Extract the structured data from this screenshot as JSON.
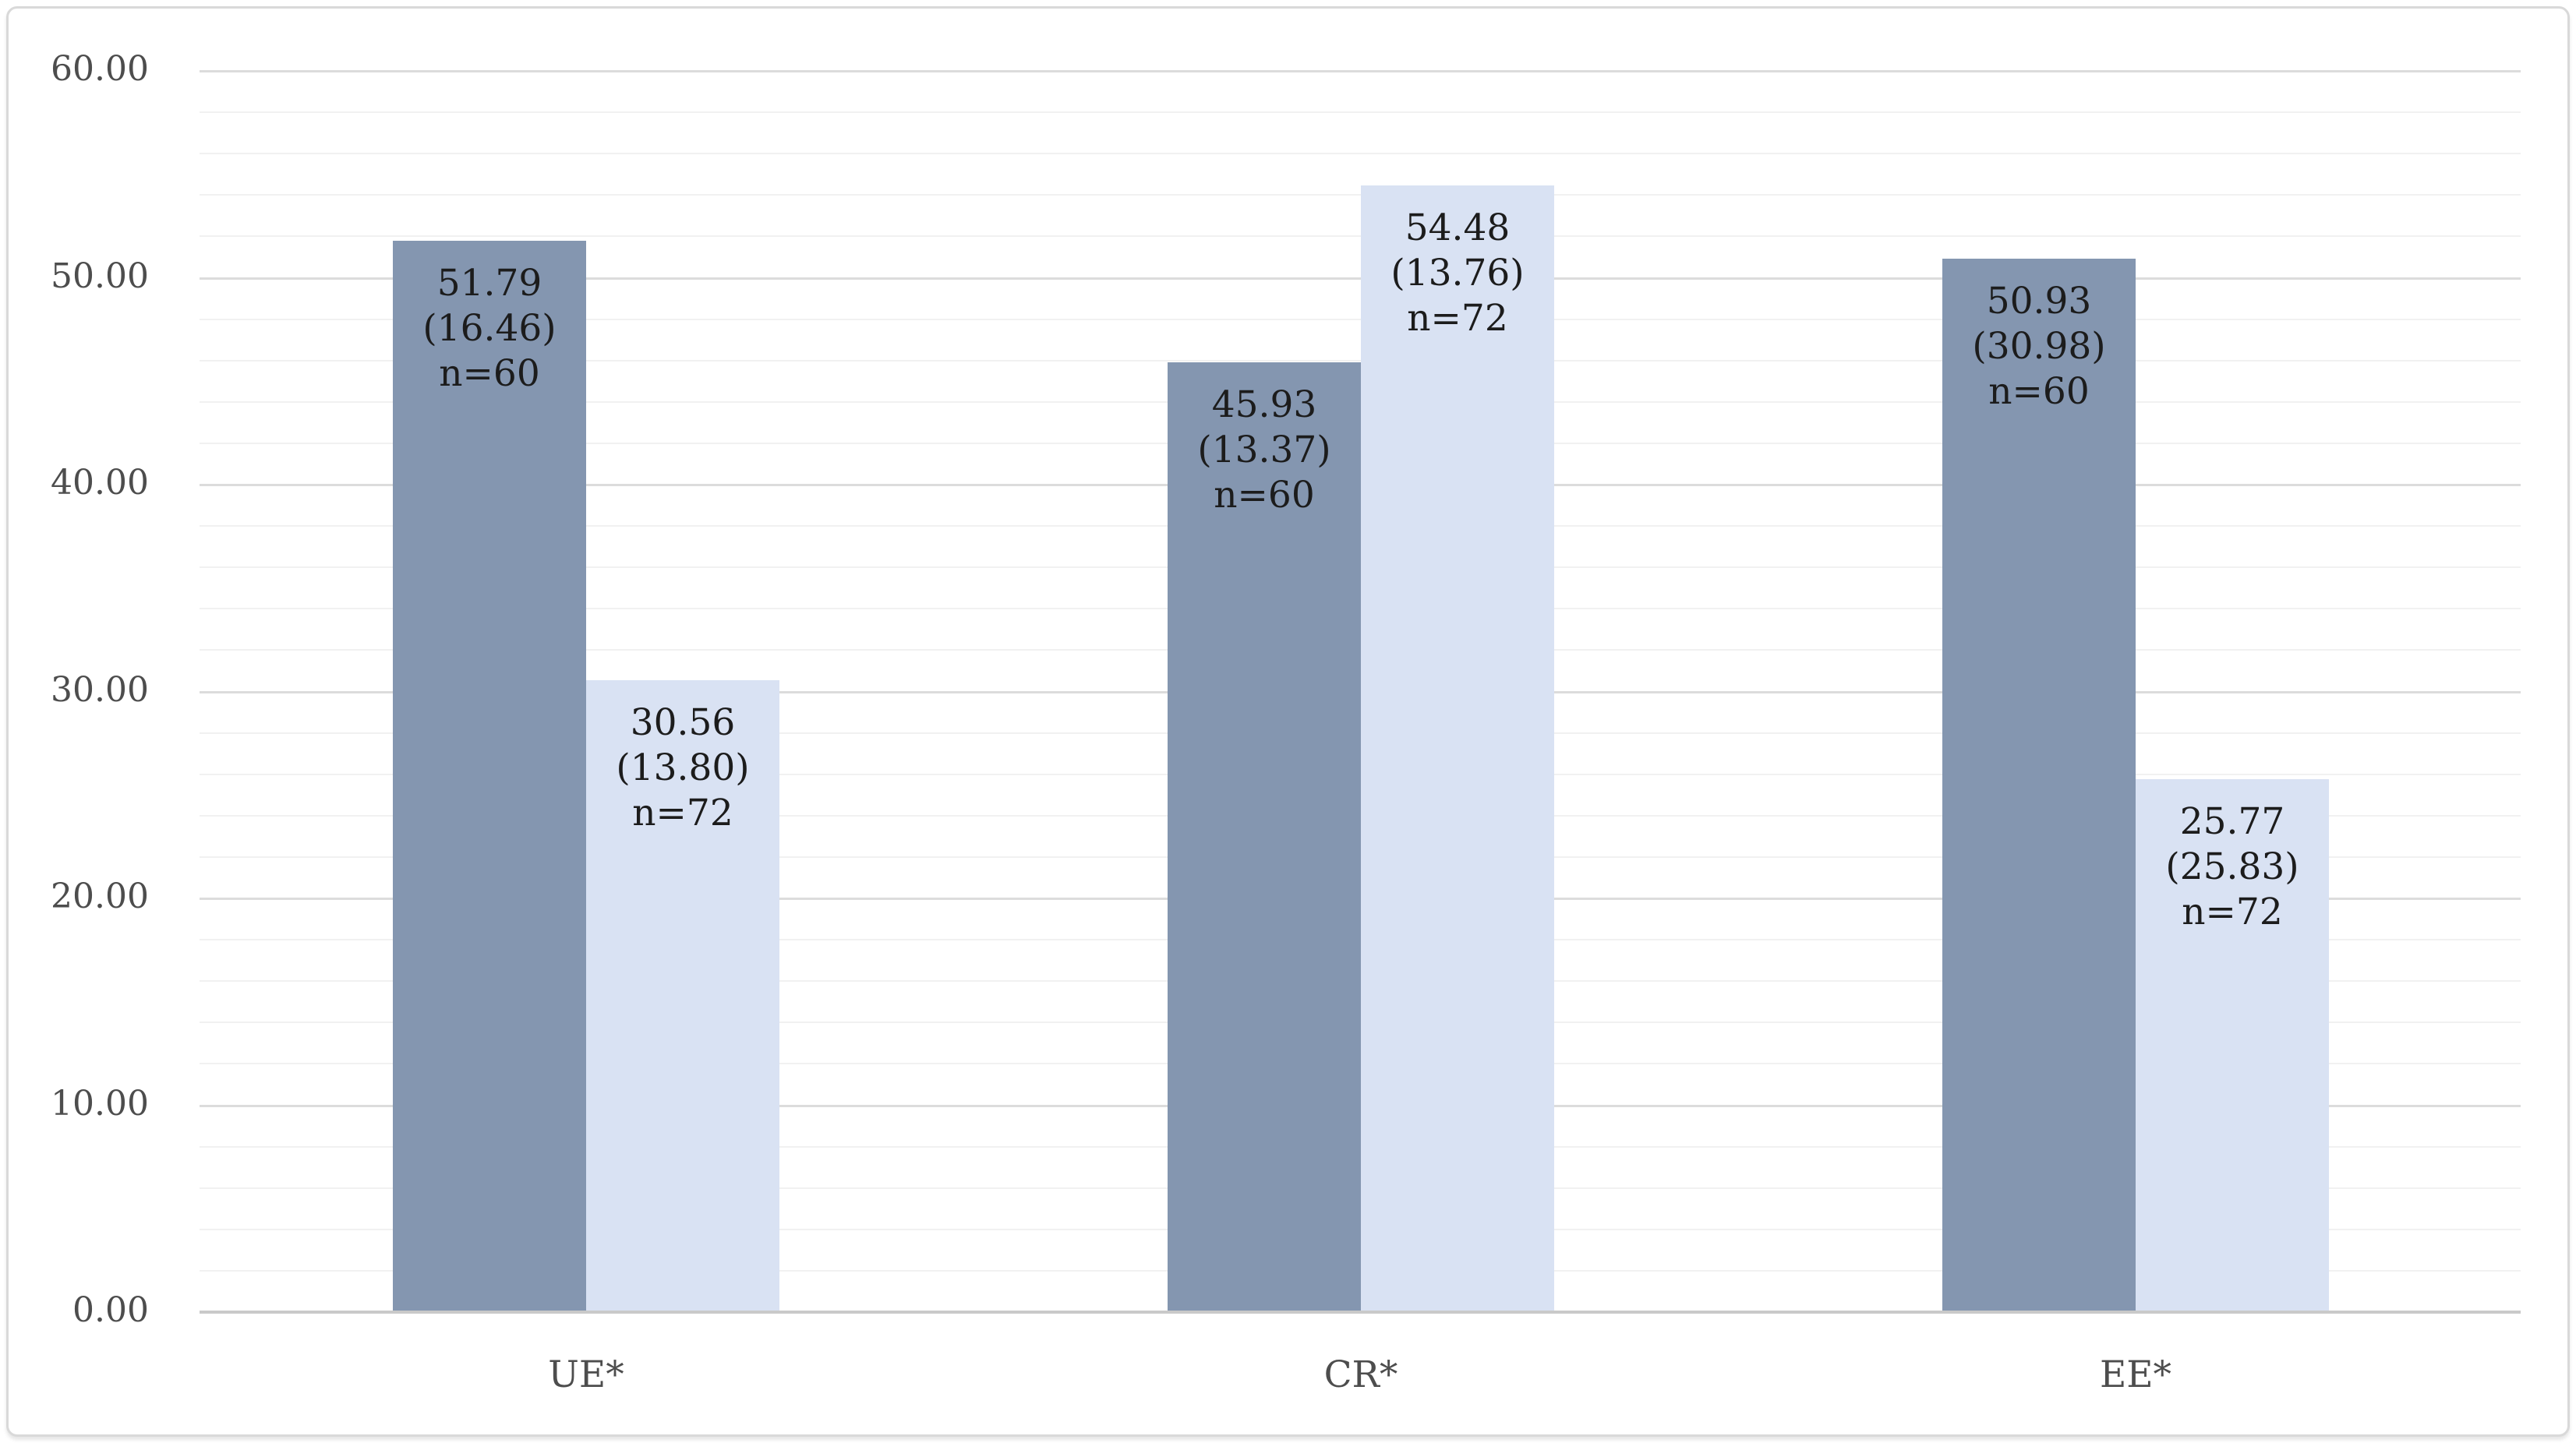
{
  "chart_data": {
    "type": "bar",
    "title": "",
    "categories": [
      "UE*",
      "CR*",
      "EE*"
    ],
    "series": [
      {
        "name": "n=60",
        "color": "#8496B0",
        "values": [
          51.79,
          45.93,
          50.93
        ],
        "sd": [
          16.46,
          13.37,
          30.98
        ],
        "n": 60,
        "bar_labels": [
          [
            "51.79",
            "(16.46)",
            "n=60"
          ],
          [
            "45.93",
            "(13.37)",
            "n=60"
          ],
          [
            "50.93",
            "(30.98)",
            "n=60"
          ]
        ]
      },
      {
        "name": "n=72",
        "color": "#D9E2F3",
        "values": [
          30.56,
          54.48,
          25.77
        ],
        "sd": [
          13.8,
          13.76,
          25.83
        ],
        "n": 72,
        "bar_labels": [
          [
            "30.56",
            "(13.80)",
            "n=72"
          ],
          [
            "54.48",
            "(13.76)",
            "n=72"
          ],
          [
            "25.77",
            "(25.83)",
            "n=72"
          ]
        ]
      }
    ],
    "y_axis": {
      "min": 0,
      "max": 60,
      "major_step": 10,
      "minor_step": 2,
      "tick_labels": [
        "0.00",
        "10.00",
        "20.00",
        "30.00",
        "40.00",
        "50.00",
        "60.00"
      ]
    },
    "xlabel": "",
    "ylabel": "",
    "legend_position": "none",
    "grid": {
      "major": true,
      "minor": true
    }
  },
  "colors": {
    "series_dark": "#8496B0",
    "series_light": "#D9E2F3",
    "gridline_major": "#dcdcdc",
    "gridline_minor": "#f1f1f1",
    "axis_line": "#c9c9c9",
    "axis_text": "#4d4d4d",
    "bar_label_text": "#1c1c1c",
    "frame_border": "#d9d9d9",
    "background": "#ffffff"
  }
}
